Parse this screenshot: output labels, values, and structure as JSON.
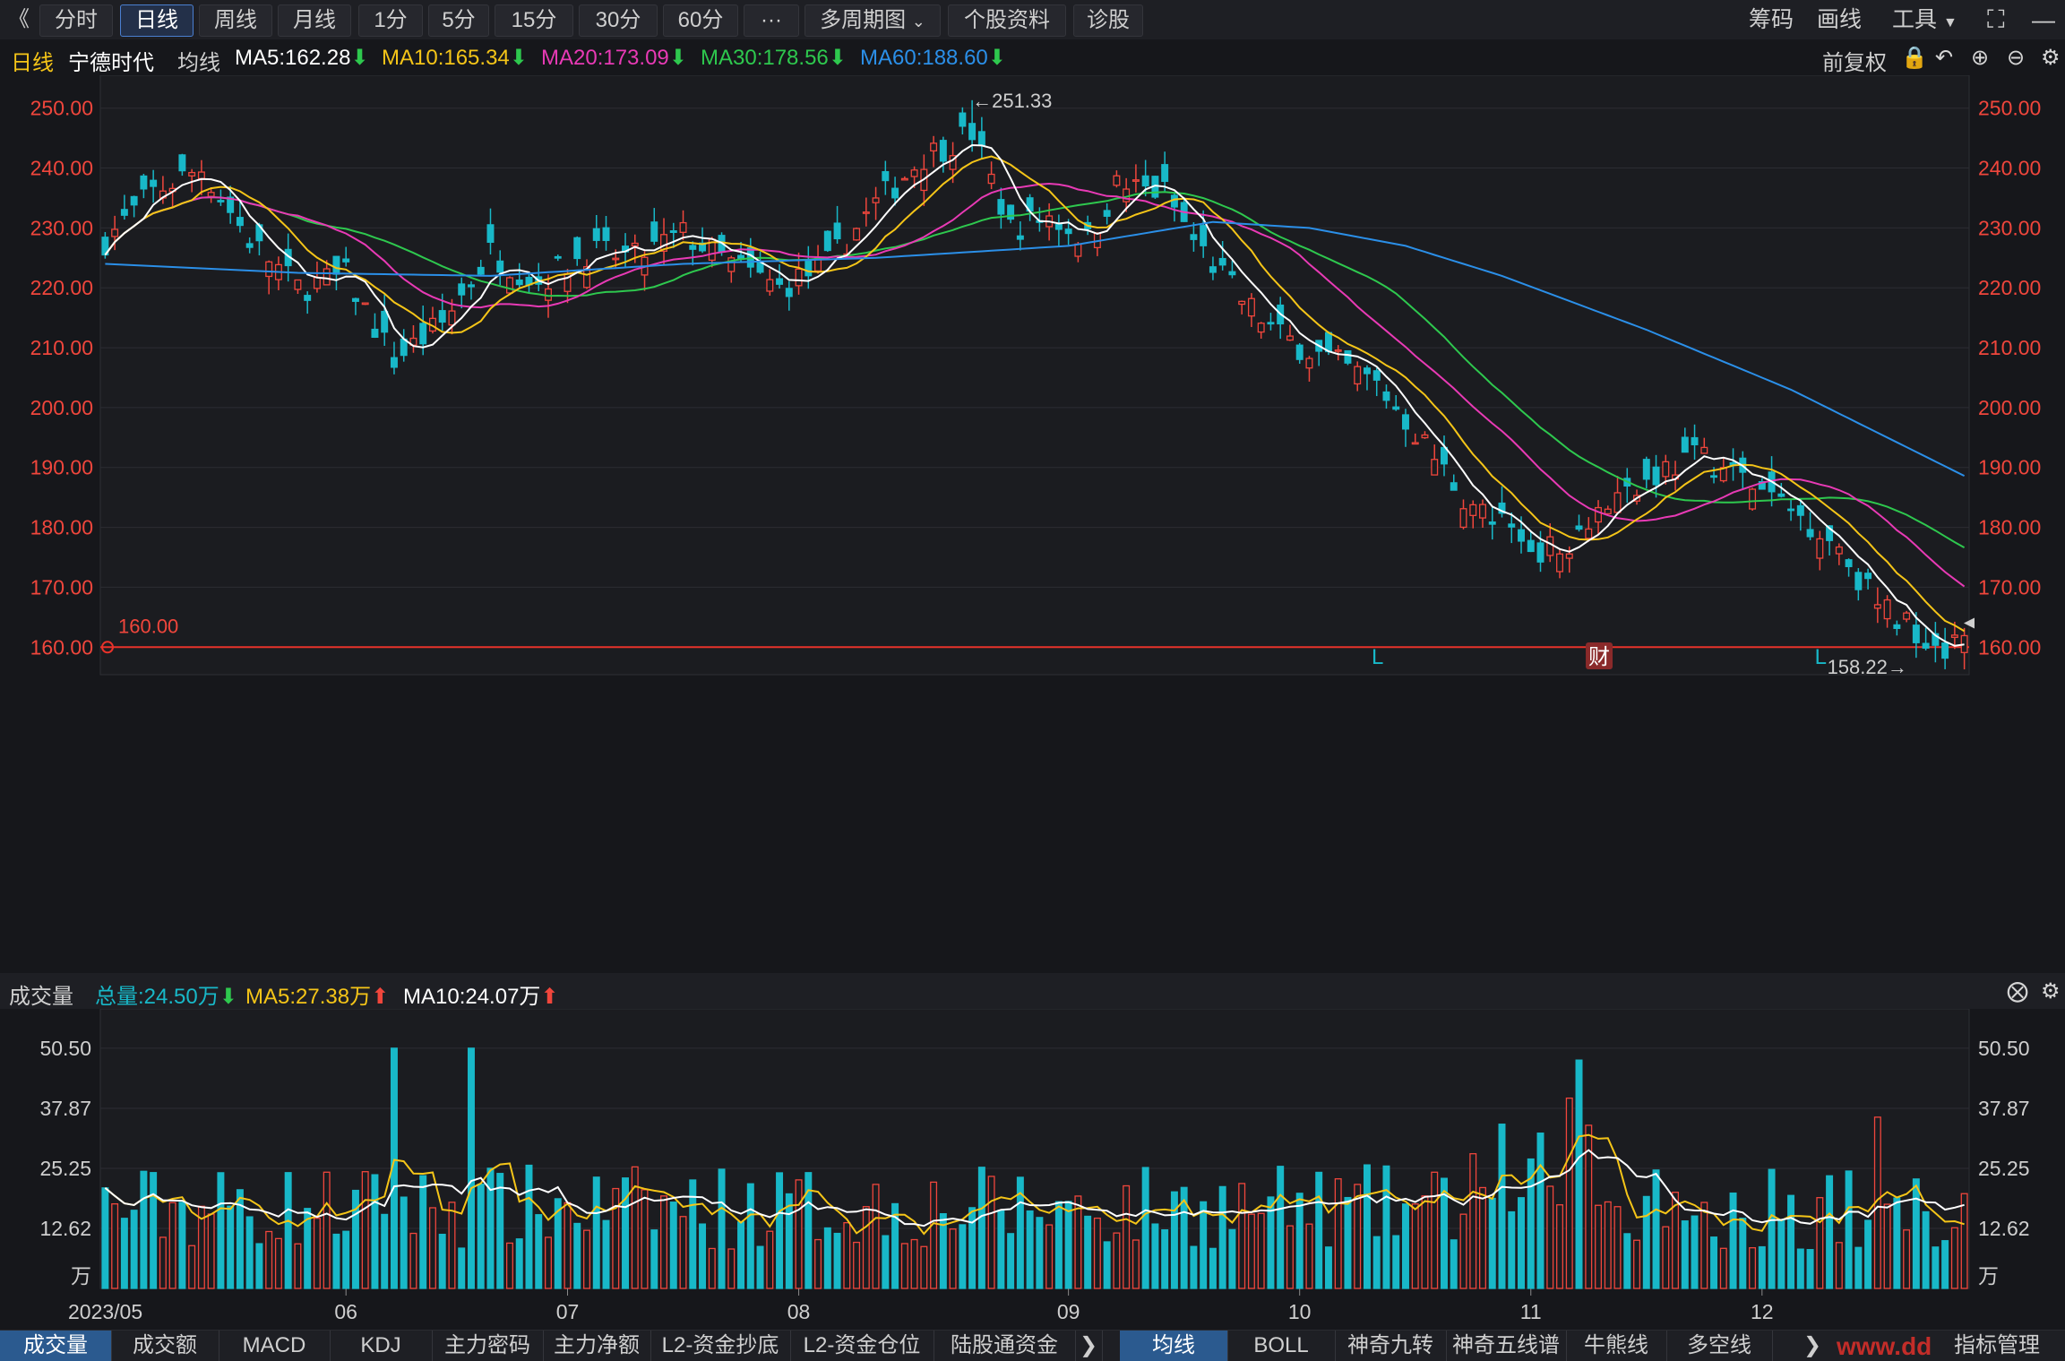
{
  "toolbar": {
    "collapse": "《",
    "periods": [
      "分时",
      "日线",
      "周线",
      "月线",
      "1分",
      "5分",
      "15分",
      "30分",
      "60分"
    ],
    "active_period": "日线",
    "more": "···",
    "multi_period": "多周期图",
    "stock_info": "个股资料",
    "diagnose": "诊股",
    "right": [
      "筹码",
      "画线",
      "工具"
    ]
  },
  "info": {
    "period": "日线",
    "stock": "宁德时代",
    "ma_label": "均线",
    "ma5": "MA5:162.28",
    "ma10": "MA10:165.34",
    "ma20": "MA20:173.09",
    "ma30": "MA30:178.56",
    "ma60": "MA60:188.60",
    "adjust": "前复权"
  },
  "volume_info": {
    "title": "成交量",
    "total": "总量:24.50万",
    "ma5": "MA5:27.38万",
    "ma10": "MA10:24.07万"
  },
  "bottom_tabs_left": [
    "成交量",
    "成交额",
    "MACD",
    "KDJ",
    "主力密码",
    "主力净额",
    "L2-资金抄底",
    "L2-资金仓位",
    "陆股通资金"
  ],
  "bottom_tabs_right": [
    "均线",
    "BOLL",
    "神奇九转",
    "神奇五线谱",
    "牛熊线",
    "多空线",
    "指标管理"
  ],
  "watermark": "www.dd",
  "colors": {
    "up": "#f0463c",
    "down": "#18b8c8",
    "ma5": "#ffffff",
    "ma10": "#f5c518",
    "ma20": "#e83ab5",
    "ma30": "#2ec84e",
    "ma60": "#2b8fe8"
  },
  "chart_data": {
    "type": "candlestick",
    "price_ticks": [
      "250.00",
      "240.00",
      "230.00",
      "220.00",
      "210.00",
      "200.00",
      "190.00",
      "180.00",
      "170.00",
      "160.00"
    ],
    "volume_ticks": [
      "50.50",
      "37.87",
      "25.25",
      "12.62",
      "万"
    ],
    "x_labels": [
      "2023/05",
      "06",
      "07",
      "08",
      "09",
      "10",
      "11",
      "12"
    ],
    "annotations": {
      "high": "←251.33",
      "low": "158.22→",
      "hline": "160.00",
      "markers": [
        "L",
        "财",
        "L"
      ]
    },
    "key_points": [
      {
        "d": 0,
        "p": 228
      },
      {
        "d": 5,
        "p": 236
      },
      {
        "d": 10,
        "p": 240
      },
      {
        "d": 15,
        "p": 228
      },
      {
        "d": 20,
        "p": 220
      },
      {
        "d": 25,
        "p": 222
      },
      {
        "d": 30,
        "p": 208
      },
      {
        "d": 35,
        "p": 214
      },
      {
        "d": 40,
        "p": 226
      },
      {
        "d": 45,
        "p": 221
      },
      {
        "d": 50,
        "p": 226
      },
      {
        "d": 55,
        "p": 225
      },
      {
        "d": 60,
        "p": 229
      },
      {
        "d": 65,
        "p": 224
      },
      {
        "d": 70,
        "p": 220
      },
      {
        "d": 75,
        "p": 224
      },
      {
        "d": 80,
        "p": 234
      },
      {
        "d": 85,
        "p": 242
      },
      {
        "d": 90,
        "p": 246
      },
      {
        "d": 94,
        "p": 230
      },
      {
        "d": 98,
        "p": 232
      },
      {
        "d": 102,
        "p": 228
      },
      {
        "d": 105,
        "p": 237
      },
      {
        "d": 110,
        "p": 236
      },
      {
        "d": 113,
        "p": 228
      },
      {
        "d": 118,
        "p": 218
      },
      {
        "d": 122,
        "p": 212
      },
      {
        "d": 127,
        "p": 208
      },
      {
        "d": 132,
        "p": 204
      },
      {
        "d": 136,
        "p": 196
      },
      {
        "d": 142,
        "p": 183
      },
      {
        "d": 148,
        "p": 177
      },
      {
        "d": 151,
        "p": 176
      },
      {
        "d": 154,
        "p": 182
      },
      {
        "d": 158,
        "p": 186
      },
      {
        "d": 162,
        "p": 190
      },
      {
        "d": 166,
        "p": 192
      },
      {
        "d": 172,
        "p": 186
      },
      {
        "d": 176,
        "p": 182
      },
      {
        "d": 180,
        "p": 177
      },
      {
        "d": 184,
        "p": 167
      },
      {
        "d": 188,
        "p": 163
      },
      {
        "d": 191,
        "p": 160
      },
      {
        "d": 193,
        "p": 164
      }
    ],
    "ma60_points": [
      {
        "d": 0,
        "p": 224
      },
      {
        "d": 20,
        "p": 222.5
      },
      {
        "d": 40,
        "p": 222
      },
      {
        "d": 60,
        "p": 224
      },
      {
        "d": 80,
        "p": 225
      },
      {
        "d": 100,
        "p": 227
      },
      {
        "d": 115,
        "p": 231
      },
      {
        "d": 125,
        "p": 230
      },
      {
        "d": 135,
        "p": 227
      },
      {
        "d": 145,
        "p": 222
      },
      {
        "d": 160,
        "p": 213
      },
      {
        "d": 175,
        "p": 203
      },
      {
        "d": 185,
        "p": 195
      },
      {
        "d": 193,
        "p": 188.6
      }
    ]
  }
}
